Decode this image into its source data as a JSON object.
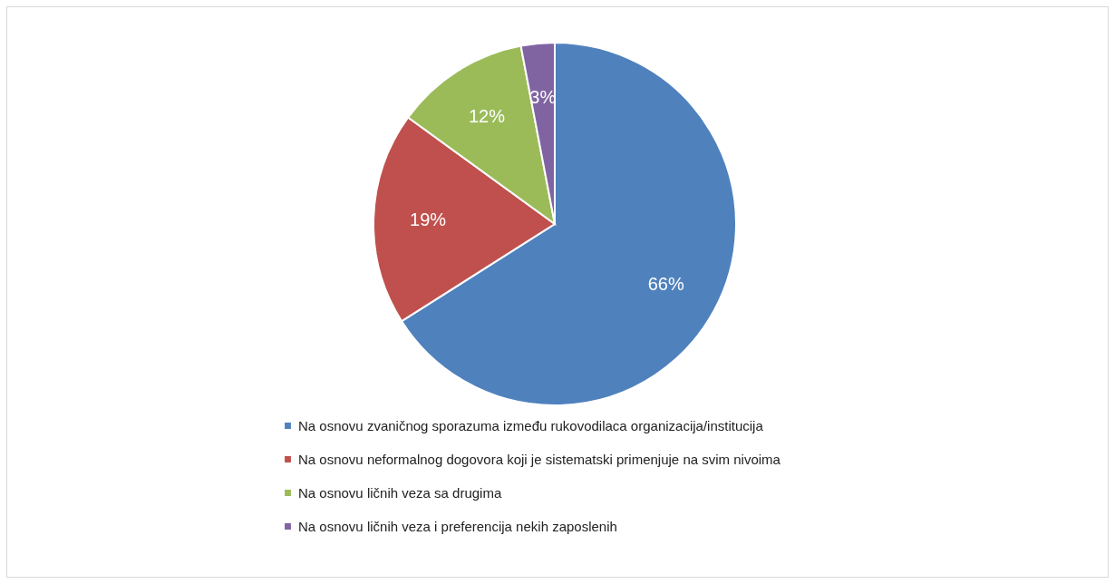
{
  "chart_data": {
    "type": "pie",
    "categories": [
      "Na osnovu zvaničnog sporazuma između rukovodilaca organizacija/institucija",
      "Na osnovu neformalnog dogovora koji je sistematski primenjuje na svim nivoima",
      "Na osnovu ličnih veza sa drugima",
      "Na osnovu ličnih veza i preferencija nekih zaposlenih"
    ],
    "values": [
      66,
      19,
      12,
      3
    ],
    "colors": [
      "#4f81bd",
      "#c0504d",
      "#9bbb59",
      "#8064a2"
    ],
    "value_labels": [
      "66%",
      "19%",
      "12%",
      "3%"
    ],
    "legend": "bottom"
  }
}
